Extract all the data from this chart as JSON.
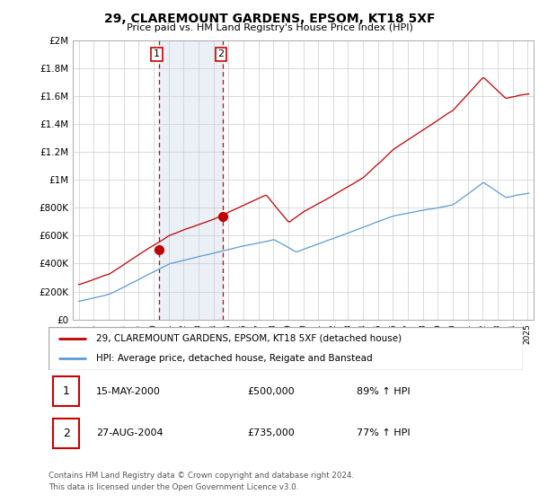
{
  "title": "29, CLAREMOUNT GARDENS, EPSOM, KT18 5XF",
  "subtitle": "Price paid vs. HM Land Registry's House Price Index (HPI)",
  "hpi_label": "HPI: Average price, detached house, Reigate and Banstead",
  "property_label": "29, CLAREMOUNT GARDENS, EPSOM, KT18 5XF (detached house)",
  "footer1": "Contains HM Land Registry data © Crown copyright and database right 2024.",
  "footer2": "This data is licensed under the Open Government Licence v3.0.",
  "transactions": [
    {
      "num": 1,
      "date": "15-MAY-2000",
      "price": "£500,000",
      "hpi": "89% ↑ HPI",
      "year": 2000.37,
      "price_val": 500000
    },
    {
      "num": 2,
      "date": "27-AUG-2004",
      "price": "£735,000",
      "hpi": "77% ↑ HPI",
      "year": 2004.65,
      "price_val": 735000
    }
  ],
  "ylim": [
    0,
    2000000
  ],
  "yticks": [
    0,
    200000,
    400000,
    600000,
    800000,
    1000000,
    1200000,
    1400000,
    1600000,
    1800000,
    2000000
  ],
  "ytick_labels": [
    "£0",
    "£200K",
    "£400K",
    "£600K",
    "£800K",
    "£1M",
    "£1.2M",
    "£1.4M",
    "£1.6M",
    "£1.8M",
    "£2M"
  ],
  "hpi_color": "#5b9bd5",
  "property_color": "#c00000",
  "vline_color": "#cc0000",
  "bg_shade_color": "#dce6f1",
  "transaction_marker_color": "#c00000",
  "xmin": 1995,
  "xmax": 2025
}
